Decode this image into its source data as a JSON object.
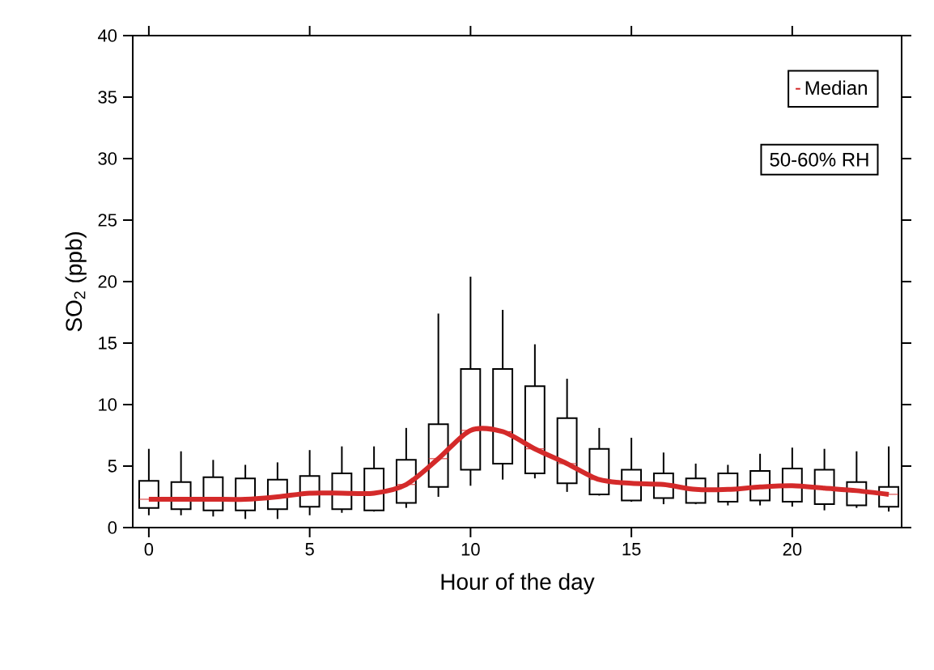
{
  "chart_data": {
    "type": "box",
    "xlabel": "Hour of the day",
    "ylabel": "SO$_{2}$ (ppb)",
    "x": [
      0,
      1,
      2,
      3,
      4,
      5,
      6,
      7,
      8,
      9,
      10,
      11,
      12,
      13,
      14,
      15,
      16,
      17,
      18,
      19,
      20,
      21,
      22,
      23
    ],
    "boxes": [
      {
        "low": 1.0,
        "q1": 1.6,
        "median": 2.3,
        "q3": 3.8,
        "high": 6.4
      },
      {
        "low": 1.0,
        "q1": 1.5,
        "median": 2.3,
        "q3": 3.7,
        "high": 6.2
      },
      {
        "low": 0.9,
        "q1": 1.4,
        "median": 2.3,
        "q3": 4.1,
        "high": 5.5
      },
      {
        "low": 0.7,
        "q1": 1.4,
        "median": 2.3,
        "q3": 4.0,
        "high": 5.1
      },
      {
        "low": 0.7,
        "q1": 1.5,
        "median": 2.5,
        "q3": 3.9,
        "high": 5.3
      },
      {
        "low": 1.0,
        "q1": 1.7,
        "median": 2.8,
        "q3": 4.2,
        "high": 6.3
      },
      {
        "low": 1.2,
        "q1": 1.5,
        "median": 2.8,
        "q3": 4.4,
        "high": 6.6
      },
      {
        "low": 1.3,
        "q1": 1.4,
        "median": 2.8,
        "q3": 4.8,
        "high": 6.6
      },
      {
        "low": 1.6,
        "q1": 2.0,
        "median": 3.5,
        "q3": 5.5,
        "high": 8.1
      },
      {
        "low": 2.5,
        "q1": 3.3,
        "median": 5.6,
        "q3": 8.4,
        "high": 17.4
      },
      {
        "low": 3.4,
        "q1": 4.7,
        "median": 7.9,
        "q3": 12.9,
        "high": 20.4
      },
      {
        "low": 3.9,
        "q1": 5.2,
        "median": 7.8,
        "q3": 12.9,
        "high": 17.7
      },
      {
        "low": 4.0,
        "q1": 4.4,
        "median": 6.4,
        "q3": 11.5,
        "high": 14.9
      },
      {
        "low": 2.9,
        "q1": 3.6,
        "median": 5.2,
        "q3": 8.9,
        "high": 12.1
      },
      {
        "low": 2.6,
        "q1": 2.7,
        "median": 3.9,
        "q3": 6.4,
        "high": 8.1
      },
      {
        "low": 2.1,
        "q1": 2.2,
        "median": 3.6,
        "q3": 4.7,
        "high": 7.3
      },
      {
        "low": 1.9,
        "q1": 2.4,
        "median": 3.5,
        "q3": 4.4,
        "high": 6.1
      },
      {
        "low": 1.9,
        "q1": 2.0,
        "median": 3.1,
        "q3": 4.0,
        "high": 5.2
      },
      {
        "low": 1.8,
        "q1": 2.1,
        "median": 3.1,
        "q3": 4.4,
        "high": 5.1
      },
      {
        "low": 1.8,
        "q1": 2.2,
        "median": 3.3,
        "q3": 4.6,
        "high": 6.0
      },
      {
        "low": 1.7,
        "q1": 2.1,
        "median": 3.4,
        "q3": 4.8,
        "high": 6.5
      },
      {
        "low": 1.4,
        "q1": 1.9,
        "median": 3.2,
        "q3": 4.7,
        "high": 6.4
      },
      {
        "low": 1.6,
        "q1": 1.8,
        "median": 3.0,
        "q3": 3.7,
        "high": 6.2
      },
      {
        "low": 1.3,
        "q1": 1.7,
        "median": 2.7,
        "q3": 3.3,
        "high": 6.6
      }
    ],
    "series": [
      {
        "name": "Median",
        "type": "line",
        "color": "#d42a2a",
        "values": [
          2.3,
          2.3,
          2.3,
          2.3,
          2.5,
          2.8,
          2.8,
          2.8,
          3.5,
          5.6,
          7.9,
          7.8,
          6.4,
          5.2,
          3.9,
          3.6,
          3.5,
          3.1,
          3.1,
          3.3,
          3.4,
          3.2,
          3.0,
          2.7
        ]
      }
    ],
    "xlim": [
      -0.5,
      23.4
    ],
    "ylim": [
      0,
      40
    ],
    "xticks": [
      0,
      5,
      10,
      15,
      20
    ],
    "yticks": [
      0,
      5,
      10,
      15,
      20,
      25,
      30,
      35,
      40
    ],
    "annotations": [
      "50-60% RH"
    ],
    "grid": false,
    "legend": "top right",
    "marker": "none",
    "line_style": "solid"
  }
}
